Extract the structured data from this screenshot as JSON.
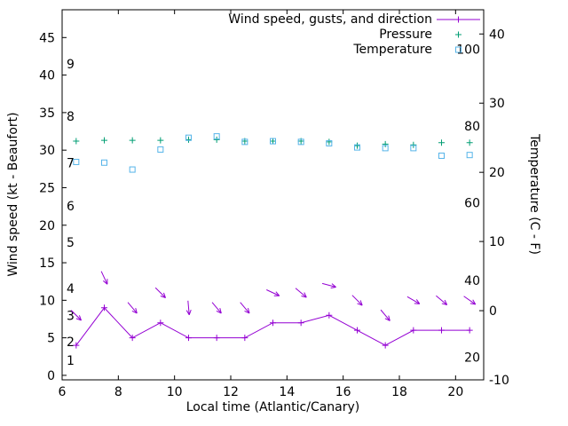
{
  "colors": {
    "wind": "#9400d3",
    "pressure": "#009e73",
    "temperature": "#56b4e9",
    "axis": "#000000",
    "text": "#000000",
    "background": "#ffffff"
  },
  "chart_data": {
    "type": "line",
    "grid": false,
    "legend": {
      "position": "top-right-inside",
      "entries": [
        {
          "label": "Wind speed, gusts, and direction",
          "series": "wind",
          "marker": "line-plus"
        },
        {
          "label": "Pressure",
          "series": "pressure",
          "marker": "plus"
        },
        {
          "label": "Temperature",
          "series": "temperature",
          "marker": "open-square"
        }
      ]
    },
    "axes": {
      "x": {
        "title": "Local time (Atlantic/Canary)",
        "min": 6,
        "max": 21,
        "ticks": [
          6,
          8,
          10,
          12,
          14,
          16,
          18,
          20
        ]
      },
      "y_left": {
        "title": "Wind speed (kt - Beaufort)",
        "min": -0.6,
        "max": 48.7,
        "ticks": [
          0,
          5,
          10,
          15,
          20,
          25,
          30,
          35,
          40,
          45
        ]
      },
      "y_right": {
        "title": "Temperature (C - F)",
        "min": -10,
        "max": 43.5,
        "ticks": [
          -10,
          0,
          10,
          20,
          30,
          40
        ]
      },
      "beaufort_inset": {
        "labels": [
          "1",
          "2",
          "3",
          "4",
          "5",
          "6",
          "7",
          "8",
          "9"
        ],
        "kt_positions": [
          2,
          4.5,
          8,
          11.6,
          17.7,
          22.6,
          28.3,
          34.5,
          41.5
        ]
      },
      "fahrenheit_inset": {
        "labels": [
          "20",
          "40",
          "60",
          "80",
          "100"
        ],
        "celsius_positions": [
          -6.7,
          4.4,
          15.6,
          26.7,
          37.8
        ]
      }
    },
    "x": [
      6.5,
      7.5,
      8.5,
      9.5,
      10.5,
      11.5,
      12.5,
      13.5,
      14.5,
      15.5,
      16.5,
      17.5,
      18.5,
      19.5,
      20.5
    ],
    "series": [
      {
        "key": "wind",
        "name": "Wind speed (kt)",
        "axis": "left",
        "color_key": "wind",
        "values": [
          4,
          9,
          5,
          7,
          5,
          5,
          5,
          7,
          7,
          8,
          6,
          4,
          6,
          6,
          6
        ]
      },
      {
        "key": "gust",
        "name": "Wind gusts (kt)",
        "axis": "left",
        "color_key": "wind",
        "values": [
          8,
          13,
          9,
          11,
          9,
          9,
          9,
          11,
          11,
          12,
          10,
          8,
          10,
          10,
          10
        ]
      },
      {
        "key": "dir",
        "name": "Wind direction (arrow heading, deg clockwise from up)",
        "values": [
          135,
          155,
          140,
          135,
          175,
          140,
          140,
          115,
          130,
          105,
          135,
          140,
          120,
          130,
          125
        ]
      },
      {
        "key": "pressure",
        "name": "Pressure (plotted, left-axis units)",
        "axis": "left",
        "color_key": "pressure",
        "values": [
          31.2,
          31.3,
          31.3,
          31.3,
          31.4,
          31.4,
          31.2,
          31.2,
          31.2,
          31.1,
          30.6,
          30.8,
          30.7,
          31.0,
          31.0
        ]
      },
      {
        "key": "temp",
        "name": "Temperature (C)",
        "axis": "right",
        "color_key": "temperature",
        "values": [
          21.5,
          21.4,
          20.4,
          23.3,
          25.0,
          25.2,
          24.4,
          24.5,
          24.4,
          24.2,
          23.6,
          23.5,
          23.5,
          22.4,
          22.5
        ]
      }
    ]
  }
}
